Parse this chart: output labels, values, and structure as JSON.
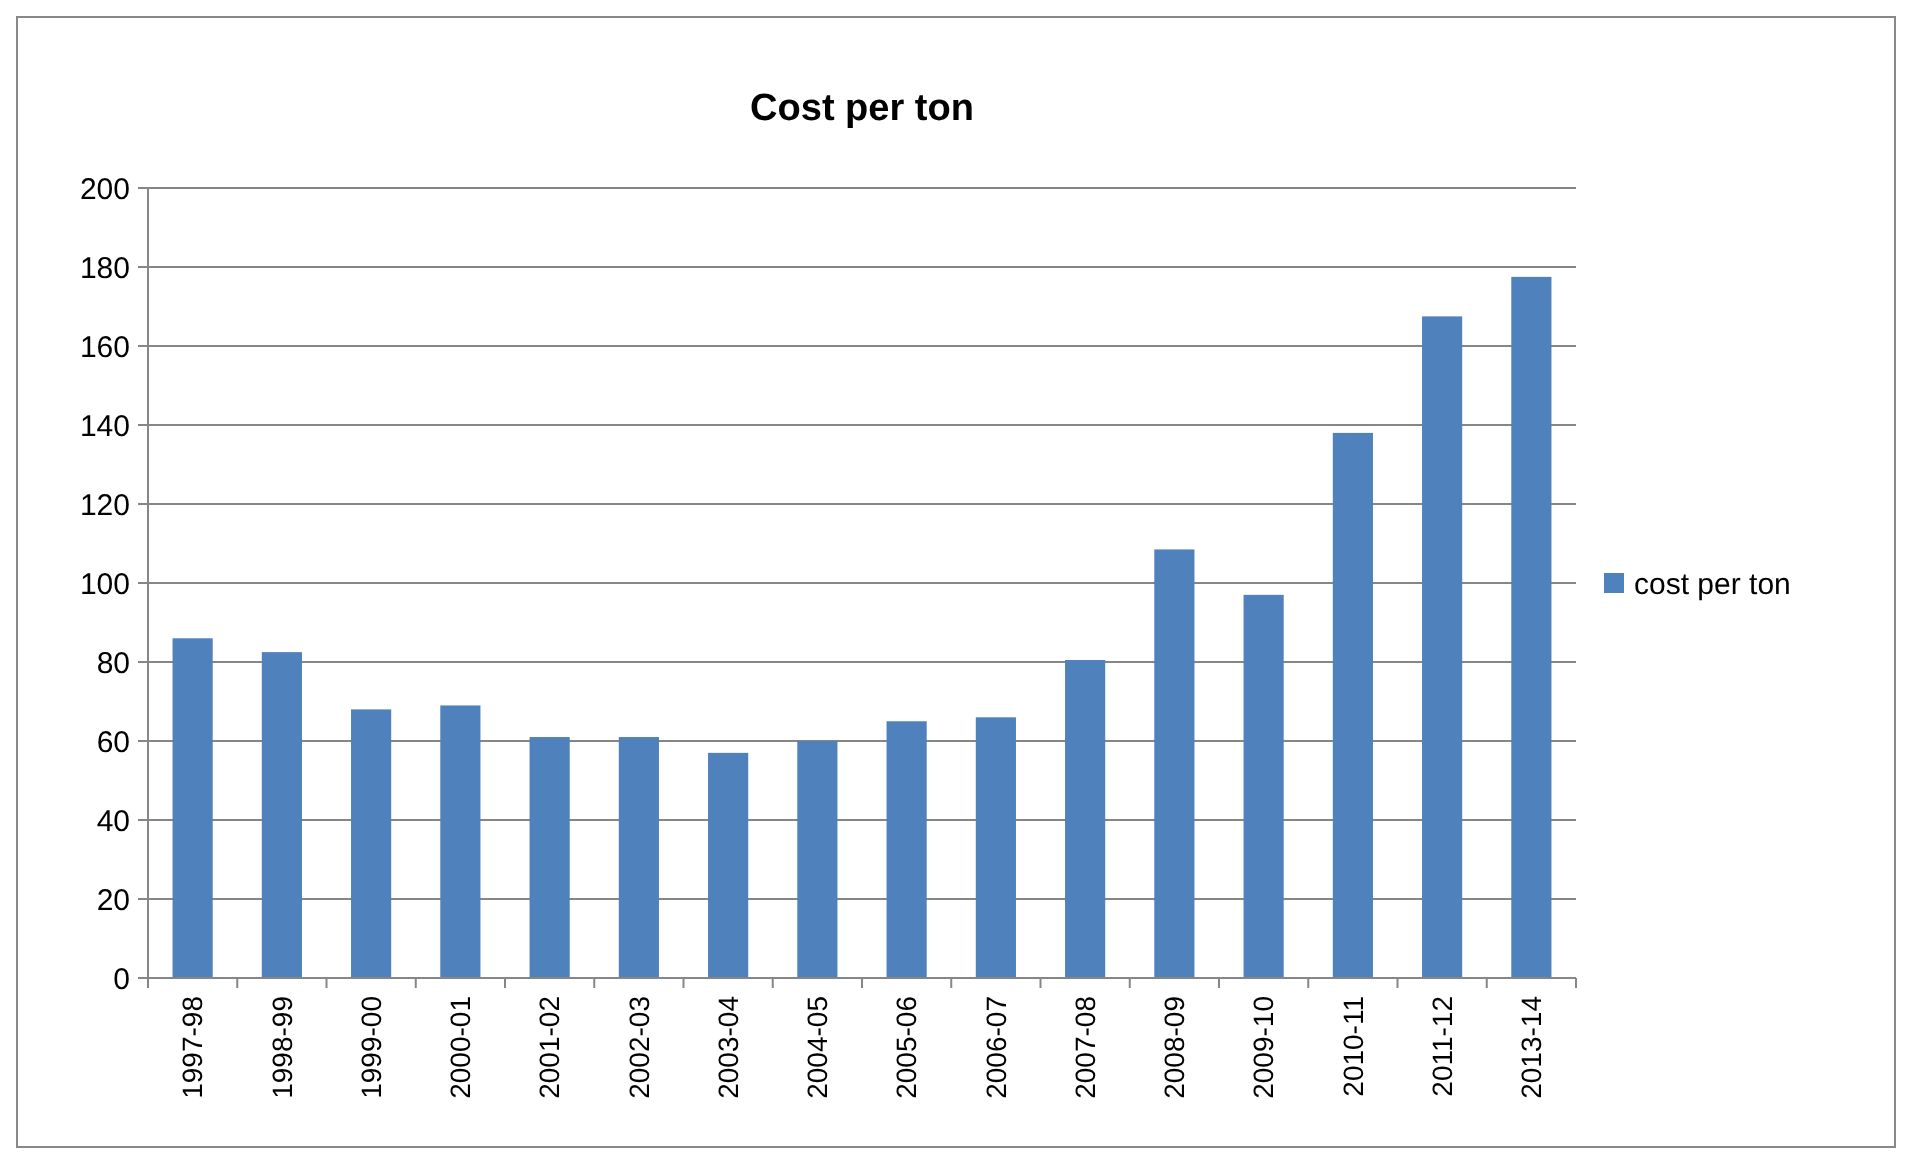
{
  "chart_data": {
    "type": "bar",
    "title": "Cost per ton",
    "categories": [
      "1997-98",
      "1998-99",
      "1999-00",
      "2000-01",
      "2001-02",
      "2002-03",
      "2003-04",
      "2004-05",
      "2005-06",
      "2006-07",
      "2007-08",
      "2008-09",
      "2009-10",
      "2010-11",
      "2011-12",
      "2013-14"
    ],
    "series": [
      {
        "name": "cost per ton",
        "color": "#4f81bd",
        "values": [
          86,
          82.5,
          68,
          69,
          61,
          61,
          57,
          60,
          65,
          66,
          80.5,
          108.5,
          97,
          138,
          167.5,
          177.5
        ]
      }
    ],
    "ylim": [
      0,
      200
    ],
    "yticks": [
      0,
      20,
      40,
      60,
      80,
      100,
      120,
      140,
      160,
      180,
      200
    ],
    "grid": "y",
    "legend": "right"
  }
}
